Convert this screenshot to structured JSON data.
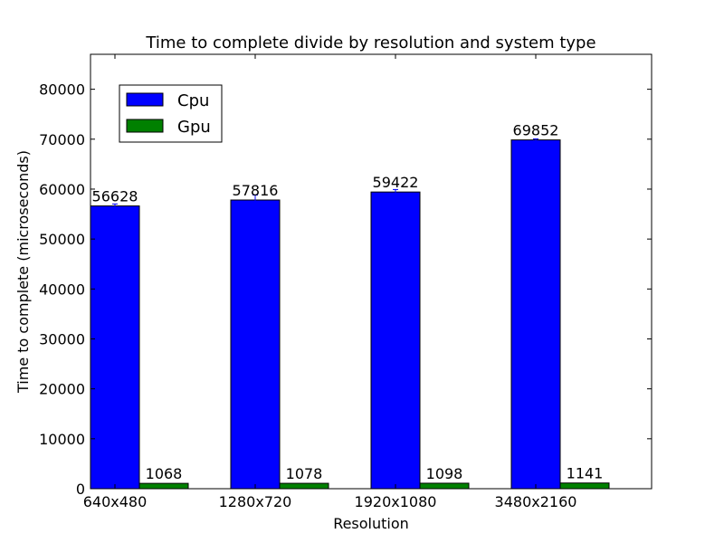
{
  "chart_data": {
    "type": "bar",
    "title": "Time to complete divide by resolution and system type",
    "xlabel": "Resolution",
    "ylabel": "Time to complete (microseconds)",
    "categories": [
      "640x480",
      "1280x720",
      "1920x1080",
      "3480x2160"
    ],
    "ylim": [
      0,
      87000
    ],
    "yticks": [
      0,
      10000,
      20000,
      30000,
      40000,
      50000,
      60000,
      70000,
      80000
    ],
    "grid": false,
    "legend_position": "top-left",
    "series": [
      {
        "name": "Cpu",
        "color": "#0000ff",
        "values": [
          56628,
          57816,
          59422,
          69852
        ],
        "errors": [
          400,
          1000,
          500,
          200
        ]
      },
      {
        "name": "Gpu",
        "color": "#008000",
        "values": [
          1068,
          1078,
          1098,
          1141
        ],
        "errors": [
          0,
          0,
          0,
          0
        ]
      }
    ]
  }
}
